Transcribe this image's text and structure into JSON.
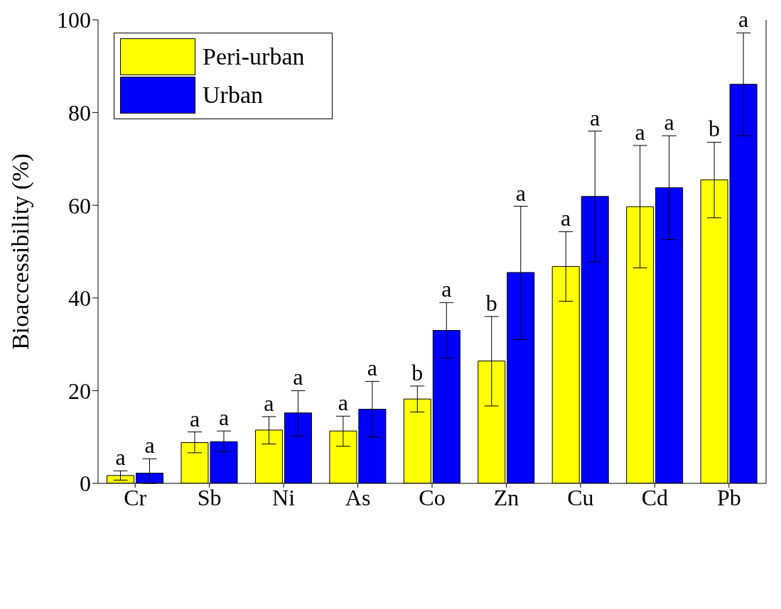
{
  "chart_data": {
    "type": "bar",
    "ylabel": "Bioaccessibility (%)",
    "categories": [
      "Cr",
      "Sb",
      "Ni",
      "As",
      "Co",
      "Zn",
      "Cu",
      "Cd",
      "Pb"
    ],
    "series": [
      {
        "name": "Peri-urban",
        "color": "#ffff00",
        "values": [
          1.7,
          8.8,
          11.5,
          11.3,
          18.2,
          26.4,
          46.8,
          59.7,
          65.5
        ],
        "errors": [
          [
            0.7,
            2.7
          ],
          [
            6.6,
            11.1
          ],
          [
            8.5,
            14.4
          ],
          [
            8,
            14.5
          ],
          [
            15.4,
            21
          ],
          [
            16.7,
            36
          ],
          [
            39.3,
            54.3
          ],
          [
            46.5,
            72.9
          ],
          [
            57.3,
            73.6
          ]
        ],
        "value_labels": [
          "a",
          "a",
          "a",
          "a",
          "b",
          "b",
          "a",
          "a",
          "b"
        ]
      },
      {
        "name": "Urban",
        "color": "#0000ff",
        "values": [
          2.2,
          9,
          15.2,
          16,
          33,
          45.5,
          61.9,
          63.8,
          86.1
        ],
        "errors": [
          [
            0,
            5.3
          ],
          [
            6.8,
            11.3
          ],
          [
            10.2,
            20
          ],
          [
            10,
            22
          ],
          [
            27,
            39
          ],
          [
            31,
            59.8
          ],
          [
            47.8,
            76
          ],
          [
            52.6,
            75
          ],
          [
            75,
            97.2
          ]
        ],
        "value_labels": [
          "a",
          "a",
          "a",
          "a",
          "a",
          "a",
          "a",
          "a",
          "a"
        ]
      }
    ],
    "ylim": [
      0,
      100
    ],
    "yticks": [
      0,
      20,
      40,
      60,
      80,
      100
    ],
    "grid": false,
    "legend": "top left"
  }
}
